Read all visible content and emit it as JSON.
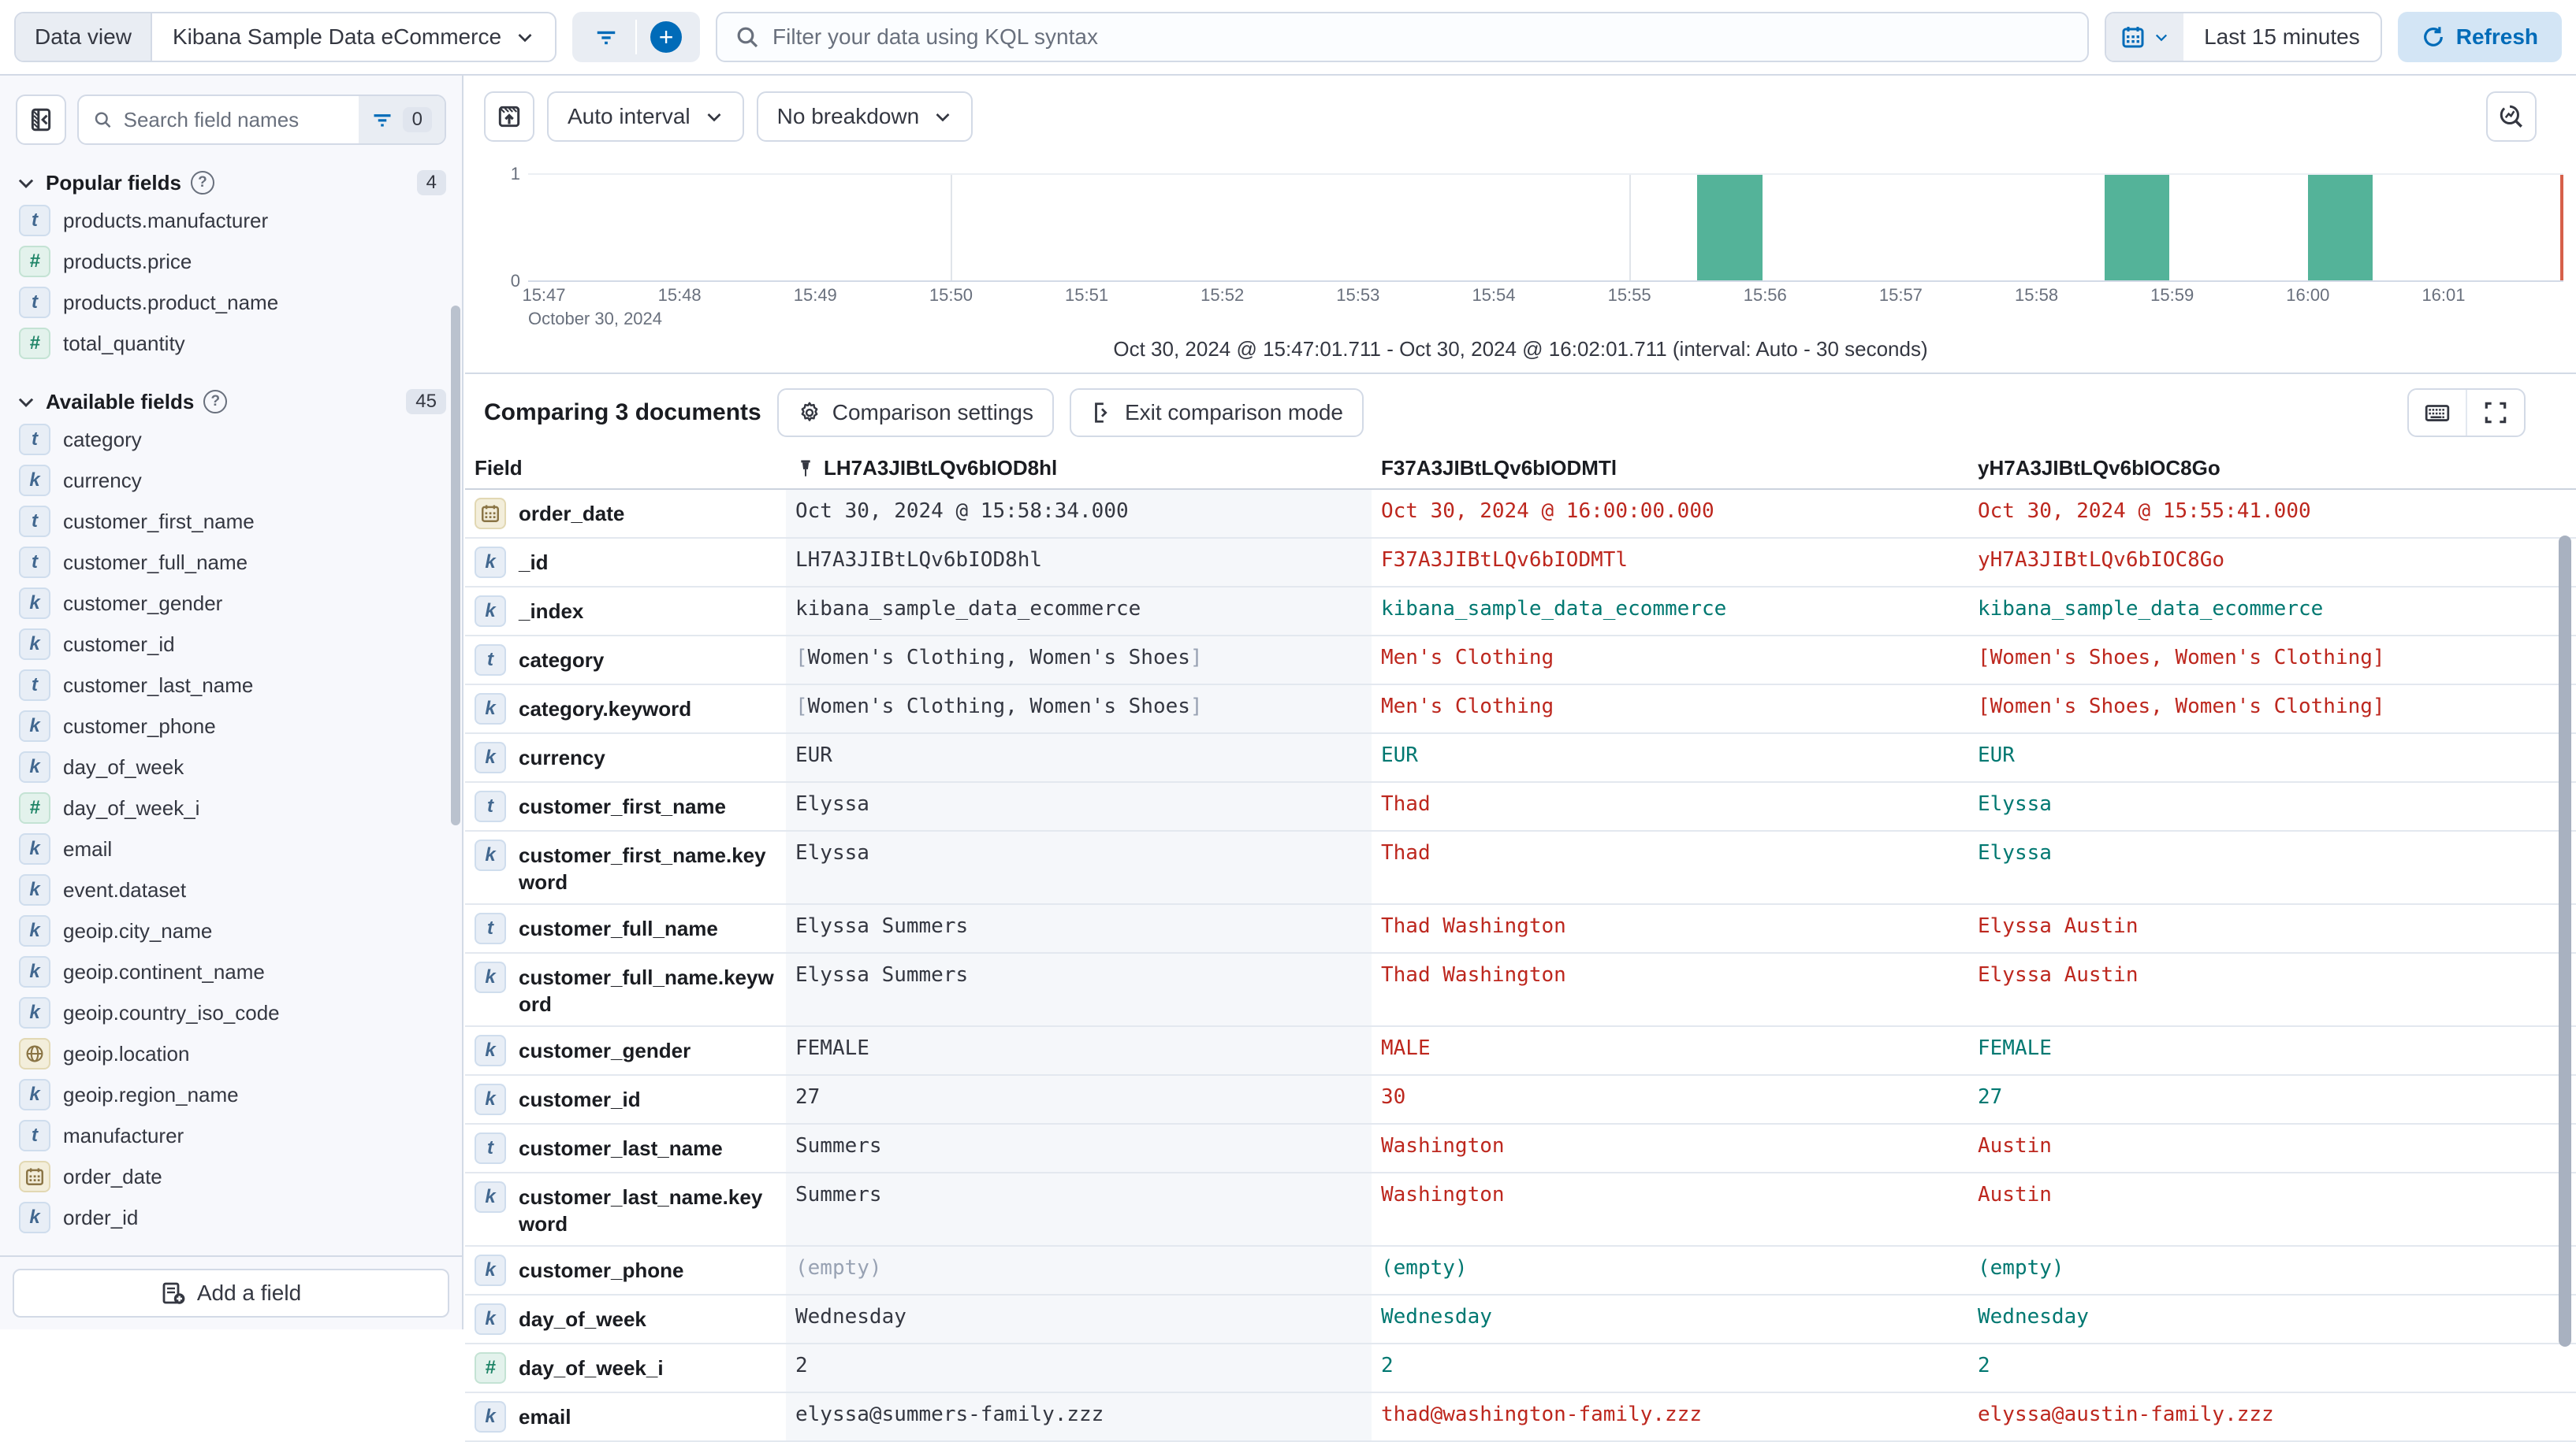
{
  "colors": {
    "primary": "#006bb8",
    "bar_green": "#54b399",
    "diff_red": "#bd271e",
    "match_teal": "#007871",
    "border": "#d3dae6",
    "now_line": "#d6604a"
  },
  "top_bar": {
    "data_view_label": "Data view",
    "data_view_value": "Kibana Sample Data eCommerce",
    "kql_placeholder": "Filter your data using KQL syntax",
    "time_range": "Last 15 minutes",
    "refresh_label": "Refresh"
  },
  "sidebar": {
    "search_placeholder": "Search field names",
    "filter_count": "0",
    "add_field_label": "Add a field",
    "sections": [
      {
        "label": "Popular fields",
        "count": "4",
        "items": [
          {
            "type": "t",
            "name": "products.manufacturer"
          },
          {
            "type": "num",
            "name": "products.price"
          },
          {
            "type": "t",
            "name": "products.product_name"
          },
          {
            "type": "num",
            "name": "total_quantity"
          }
        ]
      },
      {
        "label": "Available fields",
        "count": "45",
        "items": [
          {
            "type": "t",
            "name": "category"
          },
          {
            "type": "k",
            "name": "currency"
          },
          {
            "type": "t",
            "name": "customer_first_name"
          },
          {
            "type": "t",
            "name": "customer_full_name"
          },
          {
            "type": "k",
            "name": "customer_gender"
          },
          {
            "type": "k",
            "name": "customer_id"
          },
          {
            "type": "t",
            "name": "customer_last_name"
          },
          {
            "type": "k",
            "name": "customer_phone"
          },
          {
            "type": "k",
            "name": "day_of_week"
          },
          {
            "type": "num",
            "name": "day_of_week_i"
          },
          {
            "type": "k",
            "name": "email"
          },
          {
            "type": "k",
            "name": "event.dataset"
          },
          {
            "type": "k",
            "name": "geoip.city_name"
          },
          {
            "type": "k",
            "name": "geoip.continent_name"
          },
          {
            "type": "k",
            "name": "geoip.country_iso_code"
          },
          {
            "type": "geo",
            "name": "geoip.location"
          },
          {
            "type": "k",
            "name": "geoip.region_name"
          },
          {
            "type": "t",
            "name": "manufacturer"
          },
          {
            "type": "date",
            "name": "order_date"
          },
          {
            "type": "k",
            "name": "order_id"
          }
        ]
      }
    ]
  },
  "chart": {
    "interval_label": "Auto interval",
    "breakdown_label": "No breakdown",
    "range_caption": "Oct 30, 2024 @ 15:47:01.711 - Oct 30, 2024 @ 16:02:01.711 (interval: Auto - 30 seconds)"
  },
  "chart_data": {
    "type": "bar",
    "title": "Document count over time",
    "x_ticks": [
      "15:47",
      "15:48",
      "15:49",
      "15:50",
      "15:51",
      "15:52",
      "15:53",
      "15:54",
      "15:55",
      "15:56",
      "15:57",
      "15:58",
      "15:59",
      "16:00",
      "16:01"
    ],
    "x_date_label": "October 30, 2024",
    "major_gridlines": [
      "15:50",
      "15:55",
      "16:00"
    ],
    "y_ticks": [
      "0",
      "1"
    ],
    "ylim": [
      0,
      1
    ],
    "interval_seconds": 30,
    "x_range": [
      "15:47:01.711",
      "16:02:01.711"
    ],
    "bars": [
      {
        "time": "15:55:30",
        "count": 1
      },
      {
        "time": "15:58:30",
        "count": 1
      },
      {
        "time": "16:00:00",
        "count": 1
      }
    ],
    "bar_color": "#54b399",
    "now_line_color": "#d6604a"
  },
  "comparison": {
    "title": "Comparing 3 documents",
    "settings_label": "Comparison settings",
    "exit_label": "Exit comparison mode"
  },
  "table": {
    "field_header": "Field",
    "columns": [
      "LH7A3JIBtLQv6bIOD8hl",
      "F37A3JIBtLQv6bIODMTl",
      "yH7A3JIBtLQv6bIOC8Go"
    ],
    "rows": [
      {
        "icon": "date",
        "field": "order_date",
        "base": "Oct 30, 2024 @ 15:58:34.000",
        "cells": [
          {
            "t": "Oct 30, 2024 @ 16:00:00.000",
            "s": "diff"
          },
          {
            "t": "Oct 30, 2024 @ 15:55:41.000",
            "s": "diff"
          }
        ]
      },
      {
        "icon": "k",
        "field": "_id",
        "base": "LH7A3JIBtLQv6bIOD8hl",
        "cells": [
          {
            "t": "F37A3JIBtLQv6bIODMTl",
            "s": "diff"
          },
          {
            "t": "yH7A3JIBtLQv6bIOC8Go",
            "s": "diff"
          }
        ]
      },
      {
        "icon": "k",
        "field": "_index",
        "base": "kibana_sample_data_ecommerce",
        "cells": [
          {
            "t": "kibana_sample_data_ecommerce",
            "s": "same"
          },
          {
            "t": "kibana_sample_data_ecommerce",
            "s": "same"
          }
        ]
      },
      {
        "icon": "t",
        "field": "category",
        "base": "[Women's Clothing, Women's Shoes]",
        "baseArray": true,
        "cells": [
          {
            "t": "Men's Clothing",
            "s": "diff"
          },
          {
            "t": "[Women's Shoes, Women's Clothing]",
            "s": "diff"
          }
        ]
      },
      {
        "icon": "k",
        "field": "category.keyword",
        "base": "[Women's Clothing, Women's Shoes]",
        "baseArray": true,
        "cells": [
          {
            "t": "Men's Clothing",
            "s": "diff"
          },
          {
            "t": "[Women's Shoes, Women's Clothing]",
            "s": "diff"
          }
        ]
      },
      {
        "icon": "k",
        "field": "currency",
        "base": "EUR",
        "cells": [
          {
            "t": "EUR",
            "s": "same"
          },
          {
            "t": "EUR",
            "s": "same"
          }
        ]
      },
      {
        "icon": "t",
        "field": "customer_first_name",
        "base": "Elyssa",
        "cells": [
          {
            "t": "Thad",
            "s": "diff"
          },
          {
            "t": "Elyssa",
            "s": "same"
          }
        ]
      },
      {
        "icon": "k",
        "field": "customer_first_name.keyword",
        "base": "Elyssa",
        "cells": [
          {
            "t": "Thad",
            "s": "diff"
          },
          {
            "t": "Elyssa",
            "s": "same"
          }
        ]
      },
      {
        "icon": "t",
        "field": "customer_full_name",
        "base": "Elyssa Summers",
        "cells": [
          {
            "t": "Thad Washington",
            "s": "diff"
          },
          {
            "t": "Elyssa Austin",
            "s": "diff"
          }
        ]
      },
      {
        "icon": "k",
        "field": "customer_full_name.keyword",
        "base": "Elyssa Summers",
        "cells": [
          {
            "t": "Thad Washington",
            "s": "diff"
          },
          {
            "t": "Elyssa Austin",
            "s": "diff"
          }
        ]
      },
      {
        "icon": "k",
        "field": "customer_gender",
        "base": "FEMALE",
        "cells": [
          {
            "t": "MALE",
            "s": "diff"
          },
          {
            "t": "FEMALE",
            "s": "same"
          }
        ]
      },
      {
        "icon": "k",
        "field": "customer_id",
        "base": "27",
        "cells": [
          {
            "t": "30",
            "s": "diff"
          },
          {
            "t": "27",
            "s": "same"
          }
        ]
      },
      {
        "icon": "t",
        "field": "customer_last_name",
        "base": "Summers",
        "cells": [
          {
            "t": "Washington",
            "s": "diff"
          },
          {
            "t": "Austin",
            "s": "diff"
          }
        ]
      },
      {
        "icon": "k",
        "field": "customer_last_name.keyword",
        "base": "Summers",
        "cells": [
          {
            "t": "Washington",
            "s": "diff"
          },
          {
            "t": "Austin",
            "s": "diff"
          }
        ]
      },
      {
        "icon": "k",
        "field": "customer_phone",
        "base": "(empty)",
        "baseMuted": true,
        "cells": [
          {
            "t": "(empty)",
            "s": "same"
          },
          {
            "t": "(empty)",
            "s": "same"
          }
        ]
      },
      {
        "icon": "k",
        "field": "day_of_week",
        "base": "Wednesday",
        "cells": [
          {
            "t": "Wednesday",
            "s": "same"
          },
          {
            "t": "Wednesday",
            "s": "same"
          }
        ]
      },
      {
        "icon": "num",
        "field": "day_of_week_i",
        "base": "2",
        "cells": [
          {
            "t": "2",
            "s": "same"
          },
          {
            "t": "2",
            "s": "same"
          }
        ]
      },
      {
        "icon": "k",
        "field": "email",
        "base": "elyssa@summers-family.zzz",
        "cells": [
          {
            "t": "thad@washington-family.zzz",
            "s": "diff"
          },
          {
            "t": "elyssa@austin-family.zzz",
            "s": "diff"
          }
        ]
      }
    ]
  }
}
